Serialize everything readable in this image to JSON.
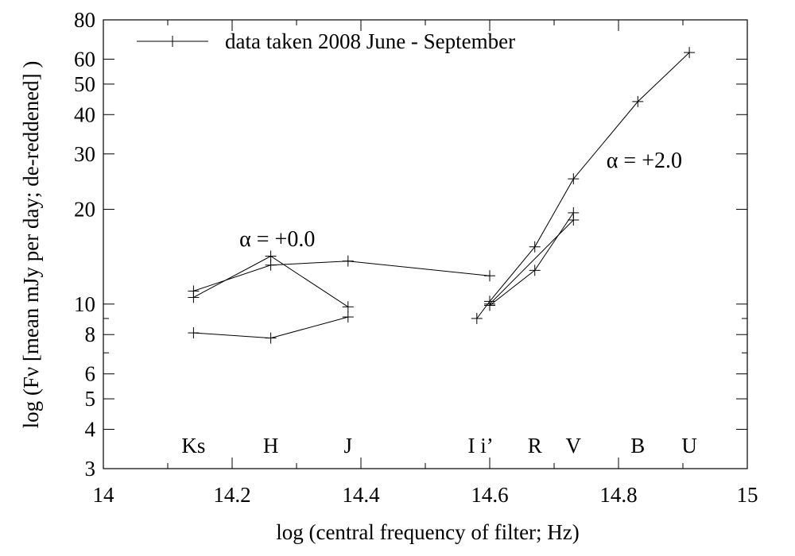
{
  "chart_data": {
    "type": "line",
    "xlabel": "log (central frequency of filter; Hz)",
    "ylabel": "log (Fν [mean mJy per day; de-reddened] )",
    "xlim": [
      14,
      15
    ],
    "ylim": [
      3,
      80
    ],
    "y_scale": "log",
    "grid": false,
    "legend_position": "top-left",
    "x_ticks": [
      14,
      14.2,
      14.4,
      14.6,
      14.8,
      15
    ],
    "x_tick_labels": [
      "14",
      "14.2",
      "14.4",
      "14.6",
      "14.8",
      "15"
    ],
    "y_ticks": [
      3,
      4,
      5,
      6,
      8,
      10,
      20,
      30,
      40,
      50,
      60,
      80
    ],
    "y_tick_labels": [
      "3",
      "4",
      "5",
      "6",
      "8",
      "10",
      "20",
      "30",
      "40",
      "50",
      "60",
      "80"
    ],
    "legend": [
      {
        "label": "data taken 2008 June - September",
        "marker": "plus"
      }
    ],
    "series": [
      {
        "marker": "plus",
        "points": [
          [
            14.14,
            10.5
          ],
          [
            14.26,
            14.2
          ],
          [
            14.38,
            9.8
          ]
        ]
      },
      {
        "marker": "plus",
        "points": [
          [
            14.14,
            11.0
          ],
          [
            14.26,
            13.3
          ],
          [
            14.38,
            13.7
          ],
          [
            14.6,
            12.3
          ]
        ]
      },
      {
        "marker": "plus",
        "points": [
          [
            14.14,
            8.1
          ],
          [
            14.26,
            7.8
          ],
          [
            14.38,
            9.1
          ]
        ]
      },
      {
        "marker": "plus",
        "points": [
          [
            14.58,
            9.0
          ],
          [
            14.6,
            10.2
          ],
          [
            14.67,
            15.2
          ],
          [
            14.73,
            25.0
          ],
          [
            14.83,
            44.0
          ],
          [
            14.91,
            63.0
          ]
        ]
      },
      {
        "marker": "plus",
        "points": [
          [
            14.6,
            9.9
          ],
          [
            14.67,
            12.8
          ],
          [
            14.73,
            19.5
          ]
        ]
      },
      {
        "marker": "plus",
        "points": [
          [
            14.6,
            10.0
          ],
          [
            14.73,
            18.5
          ]
        ]
      }
    ],
    "filter_labels": [
      {
        "text": "Ks",
        "x": 14.14
      },
      {
        "text": "H",
        "x": 14.26
      },
      {
        "text": "J",
        "x": 14.38
      },
      {
        "text": "I i’",
        "x": 14.586
      },
      {
        "text": "R",
        "x": 14.67
      },
      {
        "text": "V",
        "x": 14.73
      },
      {
        "text": "B",
        "x": 14.83
      },
      {
        "text": "U",
        "x": 14.91
      }
    ],
    "annotations": [
      {
        "text": "α = +0.0",
        "x": 14.27,
        "y": 16.2
      },
      {
        "text": "α = +2.0",
        "x": 14.84,
        "y": 28.8
      }
    ]
  }
}
